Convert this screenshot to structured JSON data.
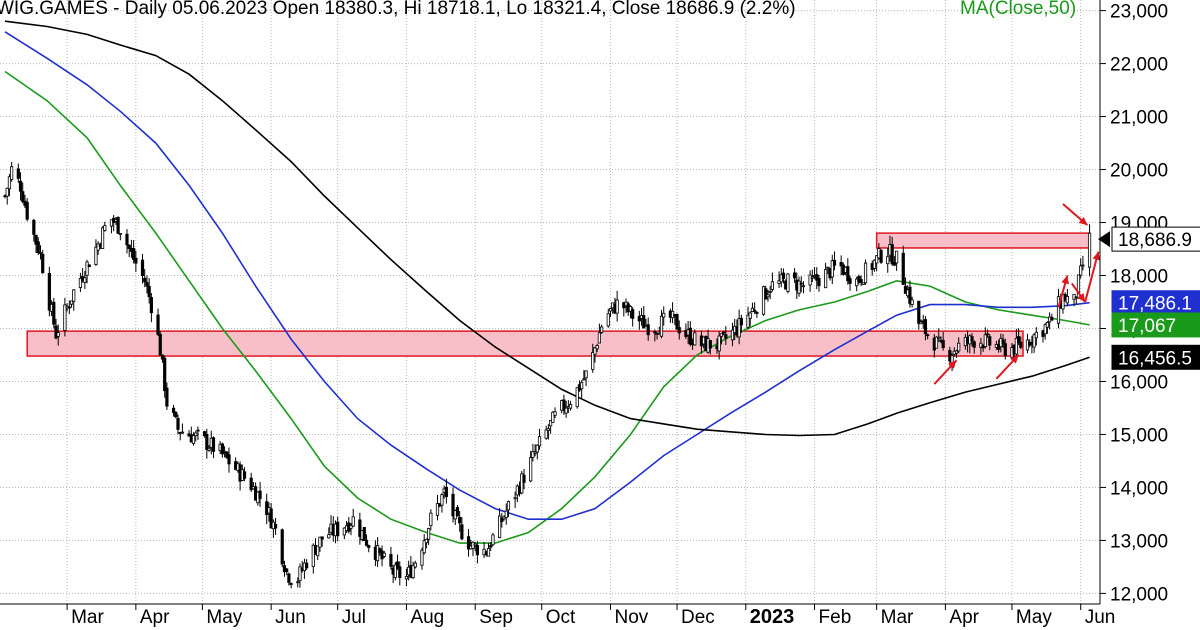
{
  "chart_data": {
    "type": "candlestick",
    "title": "WIG.GAMES - Daily 05.06.2023 Open 18380.3, Hi 18718.1, Lo 18321.4, Close 18686.9 (2.2%)",
    "indicator_label": "MA(Close,50)",
    "ylim": [
      11800,
      23200
    ],
    "yticks": [
      {
        "value": 12000,
        "label": "12,000"
      },
      {
        "value": 13000,
        "label": "13,000"
      },
      {
        "value": 14000,
        "label": "14,000"
      },
      {
        "value": 15000,
        "label": "15,000"
      },
      {
        "value": 16000,
        "label": "16,000"
      },
      {
        "value": 17000,
        "label": "17,000"
      },
      {
        "value": 18000,
        "label": "18,000"
      },
      {
        "value": 19000,
        "label": "19,000"
      },
      {
        "value": 20000,
        "label": "20,000"
      },
      {
        "value": 21000,
        "label": "21,000"
      },
      {
        "value": 22000,
        "label": "22,000"
      },
      {
        "value": 23000,
        "label": "23,000"
      }
    ],
    "x_range": [
      "2022-02-01",
      "2023-06-07"
    ],
    "month_labels": [
      {
        "date": "2022-03-01",
        "label": "Mar",
        "bold": false
      },
      {
        "date": "2022-04-01",
        "label": "Apr",
        "bold": false
      },
      {
        "date": "2022-05-01",
        "label": "May",
        "bold": false
      },
      {
        "date": "2022-06-01",
        "label": "Jun",
        "bold": false
      },
      {
        "date": "2022-07-01",
        "label": "Jul",
        "bold": false
      },
      {
        "date": "2022-08-01",
        "label": "Aug",
        "bold": false
      },
      {
        "date": "2022-09-01",
        "label": "Sep",
        "bold": false
      },
      {
        "date": "2022-10-01",
        "label": "Oct",
        "bold": false
      },
      {
        "date": "2022-11-01",
        "label": "Nov",
        "bold": false
      },
      {
        "date": "2022-12-01",
        "label": "Dec",
        "bold": false
      },
      {
        "date": "2023-01-01",
        "label": "2023",
        "bold": true
      },
      {
        "date": "2023-02-01",
        "label": "Feb",
        "bold": false
      },
      {
        "date": "2023-03-01",
        "label": "Mar",
        "bold": false
      },
      {
        "date": "2023-04-01",
        "label": "Apr",
        "bold": false
      },
      {
        "date": "2023-05-01",
        "label": "May",
        "bold": false
      },
      {
        "date": "2023-06-01",
        "label": "Jun",
        "bold": false
      }
    ],
    "price_path": [
      [
        "2022-02-01",
        19500
      ],
      [
        "2022-02-04",
        20000
      ],
      [
        "2022-02-08",
        19700
      ],
      [
        "2022-02-12",
        19000
      ],
      [
        "2022-02-17",
        18400
      ],
      [
        "2022-02-21",
        17500
      ],
      [
        "2022-02-24",
        16900
      ],
      [
        "2022-03-01",
        17400
      ],
      [
        "2022-03-05",
        17800
      ],
      [
        "2022-03-10",
        18200
      ],
      [
        "2022-03-15",
        18600
      ],
      [
        "2022-03-20",
        19100
      ],
      [
        "2022-03-25",
        18900
      ],
      [
        "2022-03-30",
        18400
      ],
      [
        "2022-04-05",
        17900
      ],
      [
        "2022-04-09",
        17300
      ],
      [
        "2022-04-12",
        16600
      ],
      [
        "2022-04-15",
        15600
      ],
      [
        "2022-04-20",
        15100
      ],
      [
        "2022-04-25",
        15000
      ],
      [
        "2022-05-01",
        14900
      ],
      [
        "2022-05-08",
        14700
      ],
      [
        "2022-05-15",
        14400
      ],
      [
        "2022-05-22",
        14100
      ],
      [
        "2022-05-29",
        13700
      ],
      [
        "2022-06-03",
        13200
      ],
      [
        "2022-06-08",
        12400
      ],
      [
        "2022-06-12",
        12200
      ],
      [
        "2022-06-18",
        12700
      ],
      [
        "2022-06-25",
        13100
      ],
      [
        "2022-07-01",
        13200
      ],
      [
        "2022-07-08",
        13400
      ],
      [
        "2022-07-14",
        13000
      ],
      [
        "2022-07-20",
        12700
      ],
      [
        "2022-07-26",
        12400
      ],
      [
        "2022-08-01",
        12300
      ],
      [
        "2022-08-06",
        12700
      ],
      [
        "2022-08-12",
        13400
      ],
      [
        "2022-08-18",
        13900
      ],
      [
        "2022-08-24",
        13300
      ],
      [
        "2022-08-30",
        12900
      ],
      [
        "2022-09-06",
        12800
      ],
      [
        "2022-09-12",
        13300
      ],
      [
        "2022-09-18",
        13800
      ],
      [
        "2022-09-24",
        14300
      ],
      [
        "2022-10-01",
        14900
      ],
      [
        "2022-10-08",
        15400
      ],
      [
        "2022-10-15",
        15700
      ],
      [
        "2022-10-22",
        16200
      ],
      [
        "2022-10-29",
        17200
      ],
      [
        "2022-11-05",
        17500
      ],
      [
        "2022-11-12",
        17200
      ],
      [
        "2022-11-20",
        17000
      ],
      [
        "2022-11-28",
        17200
      ],
      [
        "2022-12-05",
        16900
      ],
      [
        "2022-12-12",
        16700
      ],
      [
        "2022-12-20",
        16700
      ],
      [
        "2022-12-28",
        17000
      ],
      [
        "2023-01-05",
        17400
      ],
      [
        "2023-01-12",
        17800
      ],
      [
        "2023-01-20",
        17900
      ],
      [
        "2023-01-28",
        17800
      ],
      [
        "2023-02-05",
        18000
      ],
      [
        "2023-02-12",
        18200
      ],
      [
        "2023-02-20",
        17900
      ],
      [
        "2023-02-27",
        18200
      ],
      [
        "2023-03-05",
        18500
      ],
      [
        "2023-03-10",
        18300
      ],
      [
        "2023-03-15",
        17700
      ],
      [
        "2023-03-20",
        17100
      ],
      [
        "2023-03-26",
        16800
      ],
      [
        "2023-04-02",
        16500
      ],
      [
        "2023-04-08",
        16700
      ],
      [
        "2023-04-15",
        16800
      ],
      [
        "2023-04-22",
        16700
      ],
      [
        "2023-04-29",
        16600
      ],
      [
        "2023-05-06",
        16700
      ],
      [
        "2023-05-12",
        16900
      ],
      [
        "2023-05-18",
        17100
      ],
      [
        "2023-05-24",
        17600
      ],
      [
        "2023-05-29",
        17500
      ],
      [
        "2023-06-02",
        18200
      ],
      [
        "2023-06-05",
        18687
      ]
    ],
    "series": [
      {
        "color": "#1a9a1a",
        "points": [
          [
            "2022-02-01",
            21850
          ],
          [
            "2022-02-20",
            21300
          ],
          [
            "2022-03-10",
            20600
          ],
          [
            "2022-03-25",
            19700
          ],
          [
            "2022-04-10",
            18800
          ],
          [
            "2022-04-25",
            17900
          ],
          [
            "2022-05-10",
            17000
          ],
          [
            "2022-05-25",
            16200
          ],
          [
            "2022-06-10",
            15300
          ],
          [
            "2022-06-25",
            14400
          ],
          [
            "2022-07-10",
            13800
          ],
          [
            "2022-07-25",
            13400
          ],
          [
            "2022-08-10",
            13150
          ],
          [
            "2022-08-25",
            12950
          ],
          [
            "2022-09-10",
            12950
          ],
          [
            "2022-09-25",
            13150
          ],
          [
            "2022-10-10",
            13600
          ],
          [
            "2022-10-25",
            14200
          ],
          [
            "2022-11-10",
            15000
          ],
          [
            "2022-11-25",
            15900
          ],
          [
            "2022-12-10",
            16500
          ],
          [
            "2022-12-25",
            16850
          ],
          [
            "2023-01-10",
            17150
          ],
          [
            "2023-01-25",
            17350
          ],
          [
            "2023-02-10",
            17500
          ],
          [
            "2023-02-25",
            17700
          ],
          [
            "2023-03-10",
            17900
          ],
          [
            "2023-03-25",
            17800
          ],
          [
            "2023-04-10",
            17500
          ],
          [
            "2023-04-25",
            17350
          ],
          [
            "2023-05-10",
            17250
          ],
          [
            "2023-05-25",
            17150
          ],
          [
            "2023-06-05",
            17067
          ]
        ]
      },
      {
        "color": "#1f2fd0",
        "points": [
          [
            "2022-02-01",
            22600
          ],
          [
            "2022-02-20",
            22100
          ],
          [
            "2022-03-10",
            21600
          ],
          [
            "2022-03-25",
            21100
          ],
          [
            "2022-04-10",
            20500
          ],
          [
            "2022-04-25",
            19700
          ],
          [
            "2022-05-10",
            18800
          ],
          [
            "2022-05-25",
            17800
          ],
          [
            "2022-06-10",
            16800
          ],
          [
            "2022-06-25",
            16000
          ],
          [
            "2022-07-10",
            15300
          ],
          [
            "2022-07-25",
            14800
          ],
          [
            "2022-08-10",
            14350
          ],
          [
            "2022-08-25",
            13950
          ],
          [
            "2022-09-10",
            13600
          ],
          [
            "2022-09-25",
            13400
          ],
          [
            "2022-10-10",
            13400
          ],
          [
            "2022-10-25",
            13600
          ],
          [
            "2022-11-10",
            14100
          ],
          [
            "2022-11-25",
            14600
          ],
          [
            "2022-12-10",
            15000
          ],
          [
            "2022-12-25",
            15400
          ],
          [
            "2023-01-10",
            15800
          ],
          [
            "2023-01-25",
            16200
          ],
          [
            "2023-02-10",
            16600
          ],
          [
            "2023-02-25",
            16950
          ],
          [
            "2023-03-10",
            17250
          ],
          [
            "2023-03-25",
            17450
          ],
          [
            "2023-04-10",
            17450
          ],
          [
            "2023-04-25",
            17400
          ],
          [
            "2023-05-10",
            17400
          ],
          [
            "2023-05-25",
            17430
          ],
          [
            "2023-06-05",
            17486
          ]
        ]
      },
      {
        "color": "#000000",
        "points": [
          [
            "2022-02-01",
            22800
          ],
          [
            "2022-02-20",
            22700
          ],
          [
            "2022-03-10",
            22550
          ],
          [
            "2022-03-25",
            22350
          ],
          [
            "2022-04-10",
            22150
          ],
          [
            "2022-04-25",
            21800
          ],
          [
            "2022-05-10",
            21300
          ],
          [
            "2022-05-25",
            20750
          ],
          [
            "2022-06-10",
            20150
          ],
          [
            "2022-06-25",
            19500
          ],
          [
            "2022-07-10",
            18900
          ],
          [
            "2022-07-25",
            18300
          ],
          [
            "2022-08-10",
            17700
          ],
          [
            "2022-08-25",
            17150
          ],
          [
            "2022-09-10",
            16650
          ],
          [
            "2022-09-25",
            16250
          ],
          [
            "2022-10-10",
            15850
          ],
          [
            "2022-10-25",
            15550
          ],
          [
            "2022-11-10",
            15300
          ],
          [
            "2022-11-25",
            15200
          ],
          [
            "2022-12-10",
            15100
          ],
          [
            "2022-12-25",
            15050
          ],
          [
            "2023-01-10",
            15000
          ],
          [
            "2023-01-25",
            14980
          ],
          [
            "2023-02-10",
            15000
          ],
          [
            "2023-02-25",
            15200
          ],
          [
            "2023-03-10",
            15400
          ],
          [
            "2023-03-25",
            15600
          ],
          [
            "2023-04-10",
            15800
          ],
          [
            "2023-04-25",
            15950
          ],
          [
            "2023-05-10",
            16100
          ],
          [
            "2023-05-25",
            16300
          ],
          [
            "2023-06-05",
            16456
          ]
        ]
      }
    ],
    "price_badges": [
      {
        "label": "18,686.9",
        "value": 18686.9,
        "bg": "#ffffff",
        "fg": "#000000",
        "border": "#000000",
        "arrow": true
      },
      {
        "label": "17,486.1",
        "value": 17486.1,
        "bg": "#1f2fd0",
        "fg": "#ffffff",
        "border": "#1f2fd0",
        "arrow": false
      },
      {
        "label": "17,067",
        "value": 17067,
        "bg": "#1a9a1a",
        "fg": "#ffffff",
        "border": "#1a9a1a",
        "arrow": false
      },
      {
        "label": "16,456.5",
        "value": 16456.5,
        "bg": "#000000",
        "fg": "#ffffff",
        "border": "#000000",
        "arrow": false
      }
    ],
    "zones": [
      {
        "name": "support-zone",
        "x0": "2022-02-11",
        "x1": "2023-05-06",
        "y0": 16480,
        "y1": 16950
      },
      {
        "name": "resistance-zone",
        "x0": "2023-03-01",
        "x1": "2023-06-05",
        "y0": 18520,
        "y1": 18800
      }
    ],
    "annotation_arrows": [
      {
        "name": "arrow-down-right",
        "from": [
          "2023-05-24",
          19350
        ],
        "to": [
          "2023-06-04",
          18950
        ]
      },
      {
        "name": "arrow-up-april",
        "from": [
          "2023-03-27",
          15950
        ],
        "to": [
          "2023-04-06",
          16400
        ]
      },
      {
        "name": "arrow-up-may",
        "from": [
          "2023-04-24",
          16050
        ],
        "to": [
          "2023-05-04",
          16500
        ]
      },
      {
        "name": "arrow-up-may-late",
        "from": [
          "2023-05-22",
          17400
        ],
        "to": [
          "2023-05-26",
          18000
        ]
      },
      {
        "name": "arrow-down-june",
        "from": [
          "2023-05-28",
          17850
        ],
        "to": [
          "2023-06-03",
          17500
        ]
      },
      {
        "name": "arrow-up-june",
        "from": [
          "2023-06-03",
          17500
        ],
        "to": [
          "2023-06-09",
          18450
        ]
      }
    ],
    "grid": true
  }
}
